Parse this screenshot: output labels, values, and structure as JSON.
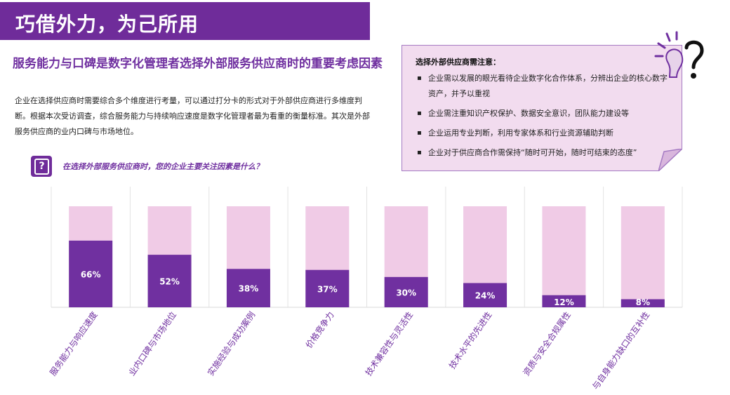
{
  "title": "巧借外力，为己所用",
  "heading": "服务能力与口碑是数字化管理者选择外部服务供应商时的重要考虑因素",
  "paragraph": "企业在选择供应商时需要综合多个维度进行考量，可以通过打分卡的形式对于外部供应商进行多维度判断。根据本次受访调查，综合服务能力与持续响应速度是数字化管理者最为看重的衡量标准。其次是外部服务供应商的业内口碑与市场地位。",
  "question": "在选择外部服务供应商时，您的企业主要关注因素是什么？",
  "question_icon": "question-mark-icon",
  "note": {
    "title": "选择外部供应商需注意：",
    "items": [
      "企业需以发展的眼光看待企业数字化合作体系，分辨出企业的核心数字资产，并予以重视",
      "企业需注重知识产权保护、数据安全意识，团队能力建设等",
      "企业运用专业判断，利用专家体系和行业资源辅助判断",
      "企业对于供应商合作需保持“随时可开始，随时可结束的态度”"
    ]
  },
  "colors": {
    "accent": "#6f2c9a",
    "bar_fill": "#7030a0",
    "bar_track": "#f0cbe6",
    "note_bg": "#f2dcef"
  },
  "chart_data": {
    "type": "bar",
    "categories": [
      "服务能力与响应速度",
      "业内口碑与市场地位",
      "实施经验与成功案例",
      "价格竞争力",
      "技术兼容性与灵活性",
      "技术水平的先进性",
      "资质与安全合规属性",
      "与自身能力缺口的互补性"
    ],
    "values": [
      66,
      52,
      38,
      37,
      30,
      24,
      12,
      8
    ],
    "labels": [
      "66%",
      "52%",
      "38%",
      "37%",
      "30%",
      "24%",
      "12%",
      "8%"
    ],
    "ylim": [
      0,
      100
    ],
    "grid": false
  }
}
